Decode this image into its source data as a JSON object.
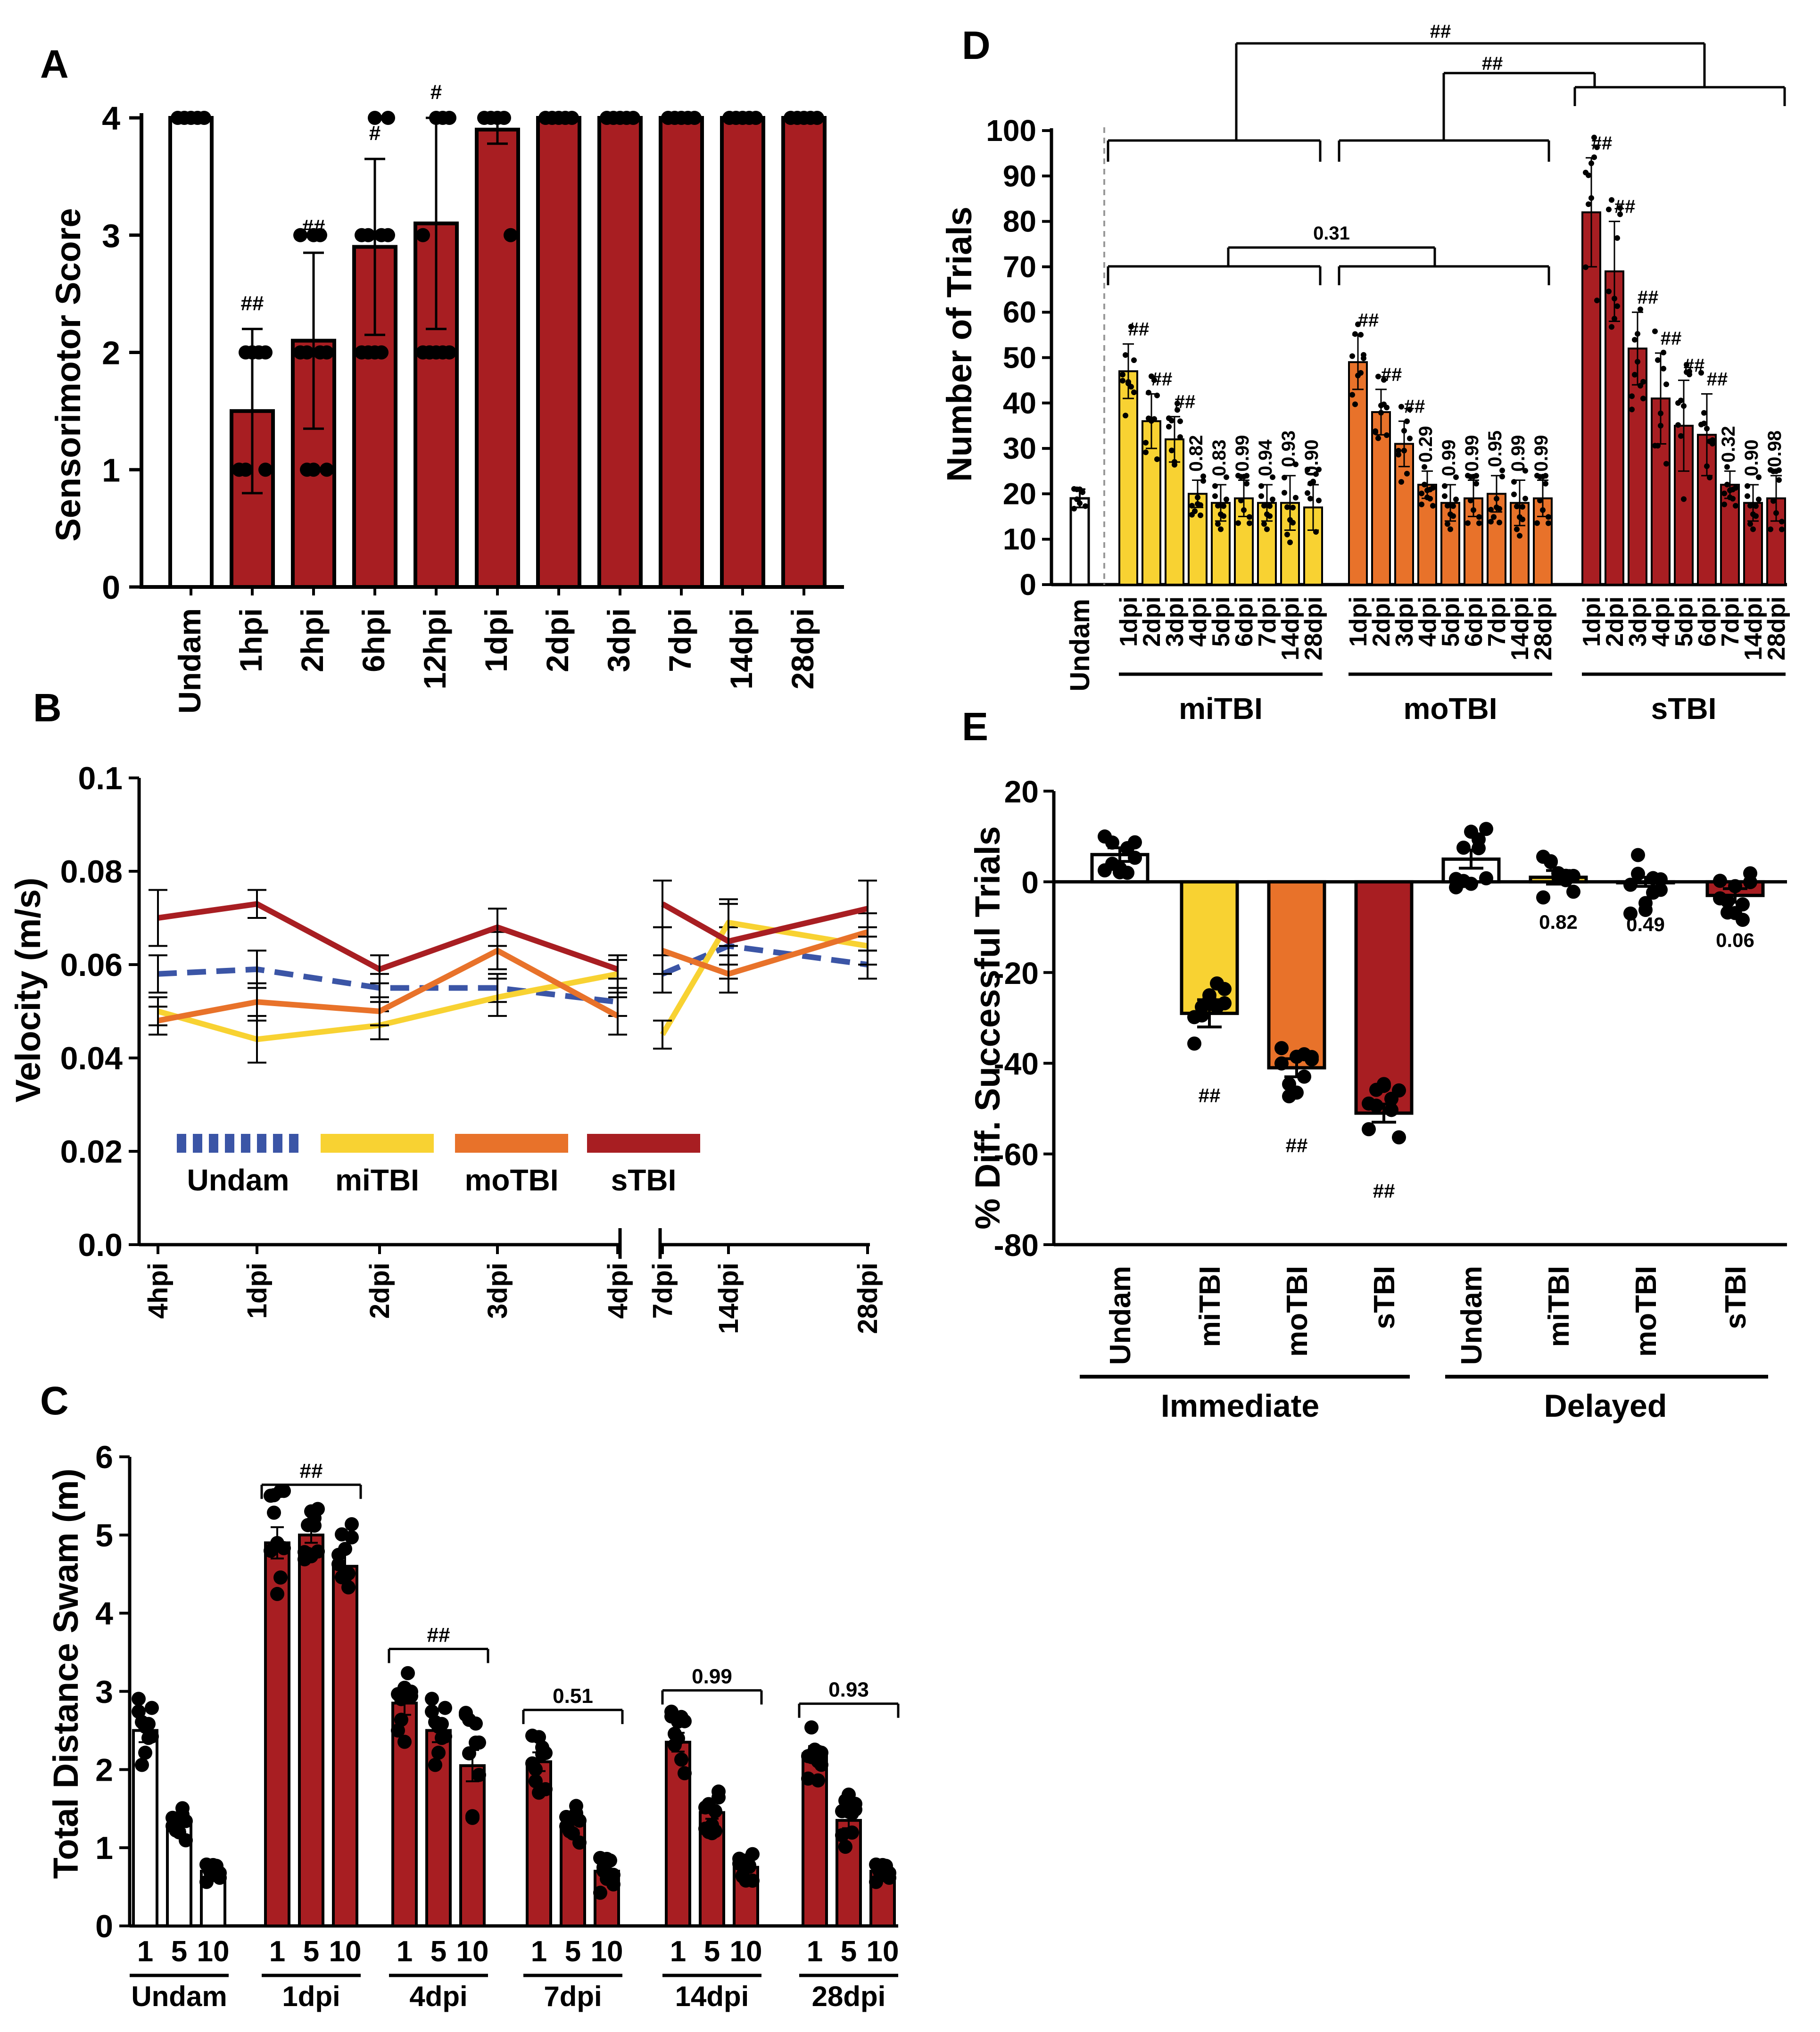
{
  "colors": {
    "undam": "#ffffff",
    "miTBI": "#f8d232",
    "moTBI": "#e8722a",
    "sTBI": "#a81e22",
    "undam_line": "#3b55a6",
    "axis": "#000000"
  },
  "chart_data": [
    {
      "panel": "A",
      "type": "bar",
      "title": "",
      "xlabel": "",
      "ylabel": "Sensorimotor Score",
      "ylim": [
        0,
        4
      ],
      "yticks": [
        "0",
        "1",
        "2",
        "3",
        "4"
      ],
      "categories": [
        "Undam",
        "1hpi",
        "2hpi",
        "6hpi",
        "12hpi",
        "1dpi",
        "2dpi",
        "3dpi",
        "7dpi",
        "14dpi",
        "28dpi"
      ],
      "values": [
        4,
        1.5,
        2.1,
        2.9,
        3.1,
        3.9,
        4,
        4,
        4,
        4,
        4
      ],
      "errors": [
        0,
        0.7,
        0.75,
        0.75,
        0.9,
        0.12,
        0,
        0,
        0,
        0,
        0
      ],
      "groups": [
        "undam",
        "sTBI",
        "sTBI",
        "sTBI",
        "sTBI",
        "sTBI",
        "sTBI",
        "sTBI",
        "sTBI",
        "sTBI",
        "sTBI"
      ],
      "annotations": [
        "",
        "##",
        "##",
        "#",
        "#",
        "",
        "",
        "",
        "",
        "",
        ""
      ]
    },
    {
      "panel": "B",
      "type": "line",
      "xlabel": "",
      "ylabel": "Velocity (m/s)",
      "ylim": [
        0,
        0.1
      ],
      "yticks": [
        "0.0",
        "0.02",
        "0.04",
        "0.06",
        "0.08",
        "0.1"
      ],
      "x": [
        "4hpi",
        "1dpi",
        "2dpi",
        "3dpi",
        "4dpi",
        "7dpi",
        "14dpi",
        "28dpi"
      ],
      "series": [
        {
          "name": "Undam",
          "key": "undam_line",
          "dashed": true,
          "values": [
            0.058,
            0.059,
            0.055,
            0.055,
            0.052,
            0.058,
            0.064,
            0.06
          ],
          "errors": [
            0.004,
            0.004,
            0.003,
            0.003,
            0.003,
            0.004,
            0.004,
            0.003
          ]
        },
        {
          "name": "miTBI",
          "key": "miTBI",
          "dashed": false,
          "values": [
            0.05,
            0.044,
            0.047,
            0.053,
            0.058,
            0.045,
            0.069,
            0.064
          ],
          "errors": [
            0.003,
            0.005,
            0.003,
            0.004,
            0.004,
            0.003,
            0.005,
            0.004
          ]
        },
        {
          "name": "moTBI",
          "key": "moTBI",
          "dashed": false,
          "values": [
            0.048,
            0.052,
            0.05,
            0.063,
            0.049,
            0.063,
            0.058,
            0.067
          ],
          "errors": [
            0.003,
            0.004,
            0.003,
            0.004,
            0.004,
            0.005,
            0.004,
            0.004
          ]
        },
        {
          "name": "sTBI",
          "key": "sTBI",
          "dashed": false,
          "values": [
            0.07,
            0.073,
            0.059,
            0.068,
            0.059,
            0.073,
            0.065,
            0.072
          ],
          "errors": [
            0.006,
            0.003,
            0.003,
            0.004,
            0.002,
            0.005,
            0.008,
            0.006
          ]
        }
      ]
    },
    {
      "panel": "C",
      "type": "bar",
      "xlabel": "",
      "ylabel": "Total Distance Swam (m)",
      "ylim": [
        0,
        6
      ],
      "yticks": [
        "0",
        "1",
        "2",
        "3",
        "4",
        "5",
        "6"
      ],
      "groups": [
        {
          "label": "Undam",
          "kind": "undam",
          "bars": [
            {
              "trial": "1",
              "value": 2.5,
              "err": 0.15
            },
            {
              "trial": "5",
              "value": 1.3,
              "err": 0.07
            },
            {
              "trial": "10",
              "value": 0.7,
              "err": 0.04
            }
          ],
          "annotation": ""
        },
        {
          "label": "1dpi",
          "kind": "sTBI",
          "bars": [
            {
              "trial": "1",
              "value": 4.9,
              "err": 0.2
            },
            {
              "trial": "5",
              "value": 5.0,
              "err": 0.1
            },
            {
              "trial": "10",
              "value": 4.6,
              "err": 0.2
            }
          ],
          "annotation": "##"
        },
        {
          "label": "4dpi",
          "kind": "sTBI",
          "bars": [
            {
              "trial": "1",
              "value": 2.85,
              "err": 0.15
            },
            {
              "trial": "5",
              "value": 2.5,
              "err": 0.15
            },
            {
              "trial": "10",
              "value": 2.05,
              "err": 0.2
            }
          ],
          "annotation": "##"
        },
        {
          "label": "7dpi",
          "kind": "sTBI",
          "bars": [
            {
              "trial": "1",
              "value": 2.1,
              "err": 0.12
            },
            {
              "trial": "5",
              "value": 1.3,
              "err": 0.08
            },
            {
              "trial": "10",
              "value": 0.7,
              "err": 0.08
            }
          ],
          "annotation": "0.51"
        },
        {
          "label": "14dpi",
          "kind": "sTBI",
          "bars": [
            {
              "trial": "1",
              "value": 2.35,
              "err": 0.12
            },
            {
              "trial": "5",
              "value": 1.45,
              "err": 0.08
            },
            {
              "trial": "10",
              "value": 0.75,
              "err": 0.05
            }
          ],
          "annotation": "0.99"
        },
        {
          "label": "28dpi",
          "kind": "sTBI",
          "bars": [
            {
              "trial": "1",
              "value": 2.2,
              "err": 0.1
            },
            {
              "trial": "5",
              "value": 1.35,
              "err": 0.1
            },
            {
              "trial": "10",
              "value": 0.7,
              "err": 0.04
            }
          ],
          "annotation": "0.93"
        }
      ]
    },
    {
      "panel": "D",
      "type": "bar",
      "xlabel": "",
      "ylabel": "Number of Trials",
      "ylim": [
        0,
        100
      ],
      "yticks": [
        "0",
        "10",
        "20",
        "30",
        "40",
        "50",
        "60",
        "70",
        "80",
        "90",
        "100"
      ],
      "undam": {
        "label": "Undam",
        "value": 19,
        "err": 2
      },
      "days": [
        "1dpi",
        "2dpi",
        "3dpi",
        "4dpi",
        "5dpi",
        "6dpi",
        "7dpi",
        "14dpi",
        "28dpi"
      ],
      "groups": [
        {
          "label": "miTBI",
          "key": "miTBI",
          "values": [
            47,
            36,
            32,
            20,
            18,
            19,
            18,
            18,
            17
          ],
          "errors": [
            6,
            6,
            5,
            3,
            4,
            4,
            4,
            6,
            5
          ],
          "annotations": [
            "##",
            "##",
            "##",
            "0.82",
            "0.83",
            "0.99",
            "0.94",
            "0.93",
            "0.90"
          ]
        },
        {
          "label": "moTBI",
          "key": "moTBI",
          "values": [
            49,
            38,
            31,
            22,
            18,
            19,
            20,
            18,
            19
          ],
          "errors": [
            6,
            5,
            5,
            3,
            4,
            4,
            4,
            5,
            4
          ],
          "annotations": [
            "##",
            "##",
            "##",
            "0.29",
            "0.99",
            "0.99",
            "0.95",
            "0.99",
            "0.99"
          ]
        },
        {
          "label": "sTBI",
          "key": "sTBI",
          "values": [
            82,
            69,
            52,
            41,
            35,
            33,
            22,
            18,
            19
          ],
          "errors": [
            12,
            11,
            8,
            10,
            10,
            9,
            3,
            4,
            5
          ],
          "annotations": [
            "##",
            "##",
            "##",
            "##",
            "##",
            "##",
            "0.32",
            "0.90",
            "0.98"
          ]
        }
      ],
      "brackets": [
        "0.31",
        "##",
        "##"
      ]
    },
    {
      "panel": "E",
      "type": "bar",
      "xlabel": "",
      "ylabel": "% Diff. Successful Trials",
      "ylim": [
        -80,
        20
      ],
      "yticks": [
        "-80",
        "-60",
        "-40",
        "-20",
        "0",
        "20"
      ],
      "categories": [
        "Undam",
        "miTBI",
        "moTBI",
        "sTBI",
        "Undam",
        "miTBI",
        "moTBI",
        "sTBI"
      ],
      "keys": [
        "undam",
        "miTBI",
        "moTBI",
        "sTBI",
        "undam",
        "miTBI",
        "moTBI",
        "sTBI"
      ],
      "values": [
        6,
        -29,
        -41,
        -51,
        5,
        1,
        0,
        -3
      ],
      "errors": [
        1.5,
        3,
        2,
        2,
        2,
        1.5,
        1,
        1.5
      ],
      "annotations": [
        "",
        "##",
        "##",
        "##",
        "",
        "0.82",
        "0.49",
        "0.06"
      ],
      "group_labels": [
        "Immediate",
        "Delayed"
      ]
    }
  ],
  "panels": {
    "A": "A",
    "B": "B",
    "C": "C",
    "D": "D",
    "E": "E"
  },
  "legend_B": [
    "Undam",
    "miTBI",
    "moTBI",
    "sTBI"
  ]
}
